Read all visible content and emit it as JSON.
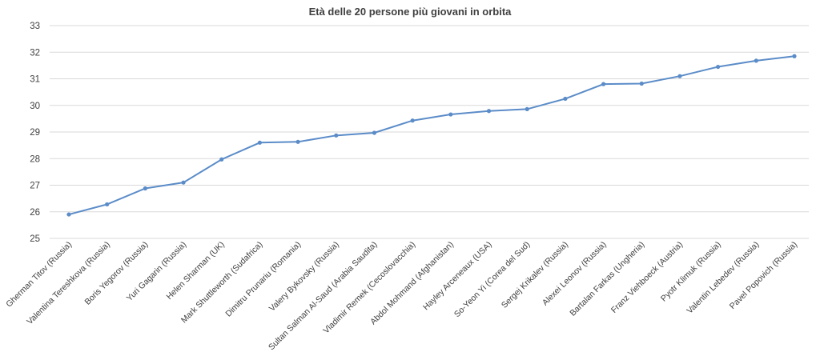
{
  "chart_data": {
    "type": "line",
    "title": "Età delle 20 persone più giovani in orbita",
    "xlabel": "",
    "ylabel": "",
    "ylim": [
      25,
      33
    ],
    "yticks": [
      25,
      26,
      27,
      28,
      29,
      30,
      31,
      32,
      33
    ],
    "grid": true,
    "legend": "none",
    "categories": [
      "Gherman Titov (Russia)",
      "Valentina Tereshkova (Russia)",
      "Boris Yegorov (Russia)",
      "Yuri Gagarin (Russia)",
      "Helen Sharman (UK)",
      "Mark Shuttleworth (Sudafrica)",
      "Dimitru Prunariu (Romania)",
      "Valery Bykovsky (Russia)",
      "Sultan Salman Al-Saud (Arabia Saudita)",
      "Vladimir Remek (Cecoslovacchia)",
      "Abdol Mohmand (Afghanistan)",
      "Hayley Arceneaux (USA)",
      "So-Yeon Yi (Corea del Sud)",
      "Sergej Krikalev (Russia)",
      "Alexei Leonov (Russia)",
      "Bartalan Farkas (Ungheria)",
      "Franz Viehboeck (Austria)",
      "Pyotr Klimuk (Russia)",
      "Valentin Lebedev (Russia)",
      "Pavel Popovich (Russia)"
    ],
    "series": [
      {
        "values": [
          25.9,
          26.28,
          26.88,
          27.1,
          27.97,
          28.6,
          28.63,
          28.87,
          28.97,
          29.43,
          29.66,
          29.79,
          29.86,
          30.25,
          30.8,
          30.82,
          31.1,
          31.45,
          31.68,
          31.85
        ],
        "color": "#5b8cc8"
      }
    ]
  }
}
